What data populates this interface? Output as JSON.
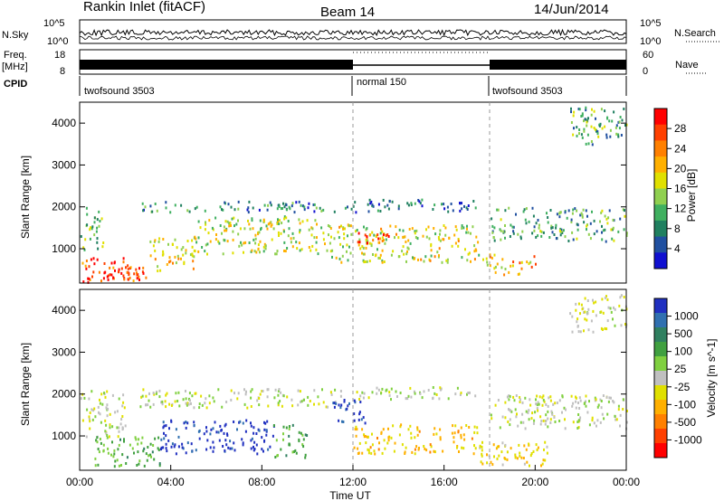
{
  "header": {
    "station": "Rankin Inlet (fitACF)",
    "beam": "Beam 14",
    "date": "14/Jun/2014"
  },
  "summary": {
    "nsky_label": "N.Sky",
    "nsky_ticks": [
      "10^5",
      "10^0"
    ],
    "nsearch_label": "N.Search",
    "nsearch_ticks": [
      "10^5",
      "10^0"
    ],
    "freq_label": "Freq.",
    "freq_unit": "[MHz]",
    "freq_ticks": [
      "18",
      "8"
    ],
    "nave_label": "Nave",
    "nave_ticks": [
      "60",
      "0"
    ],
    "cpid_label": "CPID",
    "cpid_segments": [
      {
        "name": "twofsound 3503",
        "start_h": 0,
        "end_h": 12
      },
      {
        "name": "normal 150",
        "start_h": 12,
        "end_h": 18
      },
      {
        "name": "twofsound 3503",
        "start_h": 18,
        "end_h": 24
      }
    ]
  },
  "axes": {
    "ylabel": "Slant Range [km]",
    "y_ticks": [
      "4000",
      "3000",
      "2000",
      "1000"
    ],
    "x_ticks": [
      "00:00",
      "04:00",
      "08:00",
      "12:00",
      "16:00",
      "20:00",
      "00:00"
    ],
    "xlabel": "Time UT"
  },
  "power_scale": {
    "label": "Power [dB]",
    "ticks": [
      "28",
      "24",
      "20",
      "16",
      "12",
      "8",
      "4"
    ],
    "colors": [
      "#ff0000",
      "#ff4000",
      "#ff8000",
      "#ffb000",
      "#e0e000",
      "#90d050",
      "#40b060",
      "#208060",
      "#2050a0",
      "#1010d0"
    ]
  },
  "velocity_scale": {
    "label": "Velocity [m s^-1]",
    "ticks": [
      "1000",
      "500",
      "100",
      "25",
      "-25",
      "-100",
      "-500",
      "-1000"
    ],
    "colors": [
      "#2030c0",
      "#3070b0",
      "#308060",
      "#40a040",
      "#80d040",
      "#c0c0c0",
      "#e0e000",
      "#ffb000",
      "#ff8000",
      "#ff4000",
      "#ff0000"
    ]
  },
  "chart_data": [
    {
      "type": "heatmap",
      "title": "Power",
      "xlabel": "Time UT",
      "ylabel": "Slant Range [km]",
      "x_range_h": [
        0,
        24
      ],
      "ylim": [
        180,
        4500
      ],
      "colorbar": {
        "label": "Power [dB]",
        "range": [
          0,
          30
        ]
      },
      "regions": [
        {
          "t0": 0.0,
          "t1": 3.0,
          "r0": 200,
          "r1": 800,
          "value": 26
        },
        {
          "t0": 1.0,
          "t1": 2.5,
          "r0": 300,
          "r1": 600,
          "value": 28
        },
        {
          "t0": 3.0,
          "t1": 5.0,
          "r0": 500,
          "r1": 1300,
          "value": 18
        },
        {
          "t0": 0.0,
          "t1": 1.0,
          "r0": 1000,
          "r1": 2000,
          "value": 12
        },
        {
          "t0": 2.5,
          "t1": 12.0,
          "r0": 1900,
          "r1": 2150,
          "value": 8
        },
        {
          "t0": 12.0,
          "t1": 17.5,
          "r0": 1900,
          "r1": 2200,
          "value": 6
        },
        {
          "t0": 5.0,
          "t1": 11.0,
          "r0": 900,
          "r1": 1800,
          "value": 15
        },
        {
          "t0": 11.0,
          "t1": 17.5,
          "r0": 700,
          "r1": 1600,
          "value": 16
        },
        {
          "t0": 12.0,
          "t1": 14.0,
          "r0": 1100,
          "r1": 1400,
          "value": 24
        },
        {
          "t0": 17.5,
          "t1": 20.0,
          "r0": 400,
          "r1": 900,
          "value": 20
        },
        {
          "t0": 18.0,
          "t1": 24.0,
          "r0": 1200,
          "r1": 2000,
          "value": 10
        },
        {
          "t0": 21.5,
          "t1": 24.0,
          "r0": 3500,
          "r1": 4400,
          "value": 10
        }
      ]
    },
    {
      "type": "heatmap",
      "title": "Velocity",
      "xlabel": "Time UT",
      "ylabel": "Slant Range [km]",
      "x_range_h": [
        0,
        24
      ],
      "ylim": [
        180,
        4500
      ],
      "colorbar": {
        "label": "Velocity [m s^-1]",
        "range": [
          -1000,
          1000
        ]
      },
      "regions": [
        {
          "t0": 0.0,
          "t1": 2.0,
          "r0": 1000,
          "r1": 2100,
          "value": 0
        },
        {
          "t0": 0.5,
          "t1": 3.5,
          "r0": 300,
          "r1": 1000,
          "value": 300
        },
        {
          "t0": 3.5,
          "t1": 8.5,
          "r0": 600,
          "r1": 1400,
          "value": 900
        },
        {
          "t0": 8.5,
          "t1": 10.0,
          "r0": 500,
          "r1": 1300,
          "value": 300
        },
        {
          "t0": 2.5,
          "t1": 11.5,
          "r0": 1700,
          "r1": 2150,
          "value": 0
        },
        {
          "t0": 11.0,
          "t1": 12.5,
          "r0": 1300,
          "r1": 1900,
          "value": 900
        },
        {
          "t0": 12.0,
          "t1": 17.5,
          "r0": 600,
          "r1": 1300,
          "value": -300
        },
        {
          "t0": 12.0,
          "t1": 17.5,
          "r0": 1900,
          "r1": 2200,
          "value": 50
        },
        {
          "t0": 17.5,
          "t1": 20.5,
          "r0": 300,
          "r1": 900,
          "value": -200
        },
        {
          "t0": 18.0,
          "t1": 24.0,
          "r0": 1200,
          "r1": 2000,
          "value": 0
        },
        {
          "t0": 21.5,
          "t1": 24.0,
          "r0": 3500,
          "r1": 4400,
          "value": -50
        }
      ]
    }
  ]
}
